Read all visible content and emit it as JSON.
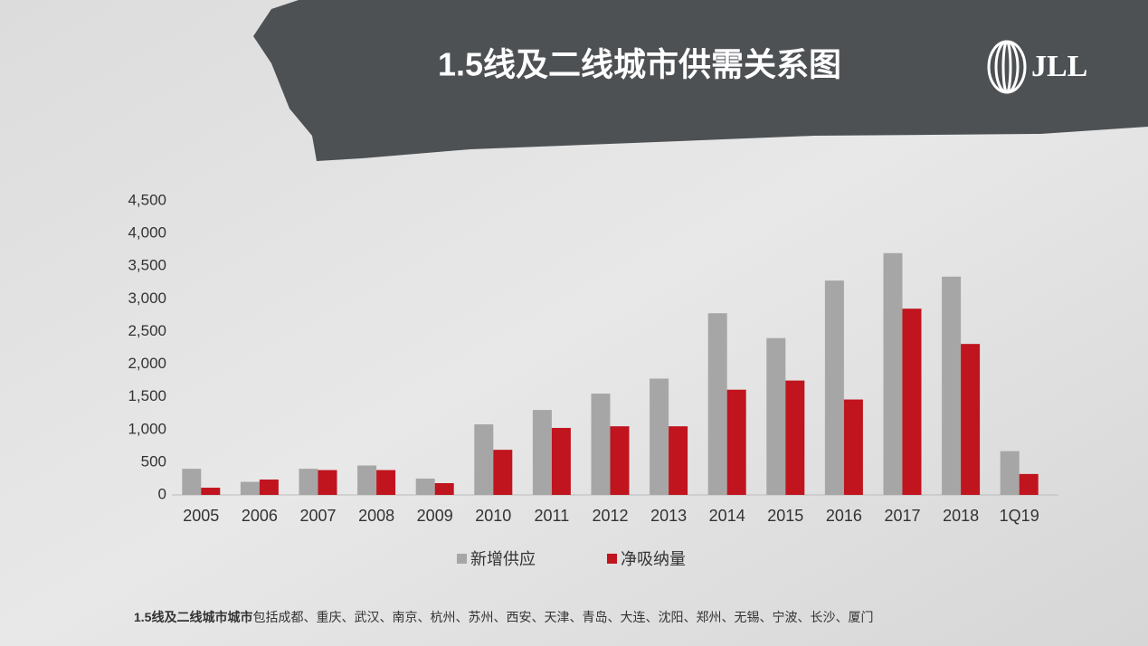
{
  "chart_data": {
    "type": "bar",
    "title": "1.5线及二线城市供需关系图",
    "logo": "JLL",
    "categories": [
      "2005",
      "2006",
      "2007",
      "2008",
      "2009",
      "2010",
      "2011",
      "2012",
      "2013",
      "2014",
      "2015",
      "2016",
      "2017",
      "2018",
      "1Q19"
    ],
    "series": [
      {
        "name": "新增供应",
        "color": "#a6a6a6",
        "values": [
          400,
          200,
          400,
          450,
          250,
          1080,
          1300,
          1550,
          1780,
          2780,
          2400,
          3280,
          3700,
          3340,
          670
        ]
      },
      {
        "name": "净吸纳量",
        "color": "#c0141e",
        "values": [
          110,
          235,
          380,
          380,
          180,
          690,
          1025,
          1050,
          1050,
          1610,
          1750,
          1460,
          2850,
          2310,
          320
        ]
      }
    ],
    "ylim": [
      0,
      4500
    ],
    "yticks": [
      0,
      500,
      {
        "value": 1000,
        "label": "1,000"
      },
      {
        "value": 1500,
        "label": "1,500"
      },
      {
        "value": 2000,
        "label": "2,000"
      },
      {
        "value": 2500,
        "label": "2,500"
      },
      {
        "value": 3000,
        "label": "3,000"
      },
      {
        "value": 3500,
        "label": "3,500"
      },
      {
        "value": 4000,
        "label": "4,000"
      },
      {
        "value": 4500,
        "label": "4,500"
      }
    ],
    "grid": false,
    "legend": "bottom",
    "footnote": {
      "bold": "1.5线及二线城市城市",
      "text": "包括成都、重庆、武汉、南京、杭州、苏州、西安、天津、青岛、大连、沈阳、郑州、无锡、宁波、长沙、厦门"
    }
  }
}
